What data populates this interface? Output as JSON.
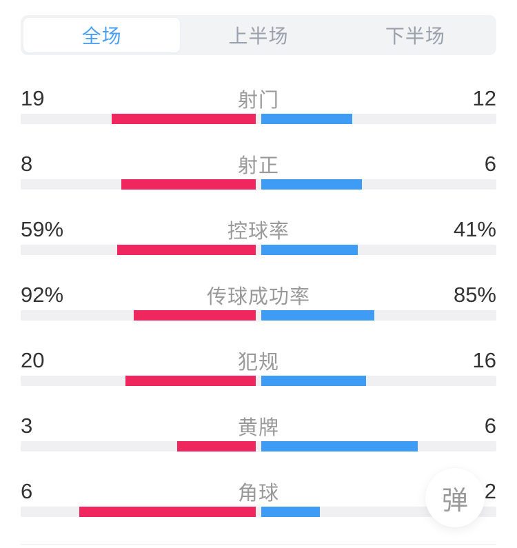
{
  "tabs": [
    {
      "label": "全场",
      "selected": true
    },
    {
      "label": "上半场",
      "selected": false
    },
    {
      "label": "下半场",
      "selected": false
    }
  ],
  "stats": {
    "rows": [
      {
        "label": "射门",
        "left": "19",
        "right": "12"
      },
      {
        "label": "射正",
        "left": "8",
        "right": "6"
      },
      {
        "label": "控球率",
        "left": "59%",
        "right": "41%"
      },
      {
        "label": "传球成功率",
        "left": "92%",
        "right": "85%"
      },
      {
        "label": "犯规",
        "left": "20",
        "right": "16"
      },
      {
        "label": "黄牌",
        "left": "3",
        "right": "6"
      },
      {
        "label": "角球",
        "left": "6",
        "right": "2"
      }
    ]
  },
  "float_button": {
    "label": "弹"
  },
  "colors": {
    "home_bar": "#f0265f",
    "away_bar": "#3e9cf5",
    "bar_track": "#f0f0f2",
    "tabbar_bg": "#f2f3f5",
    "tab_text": "#9aa1ac",
    "tab_active_text": "#4a9ff2"
  }
}
